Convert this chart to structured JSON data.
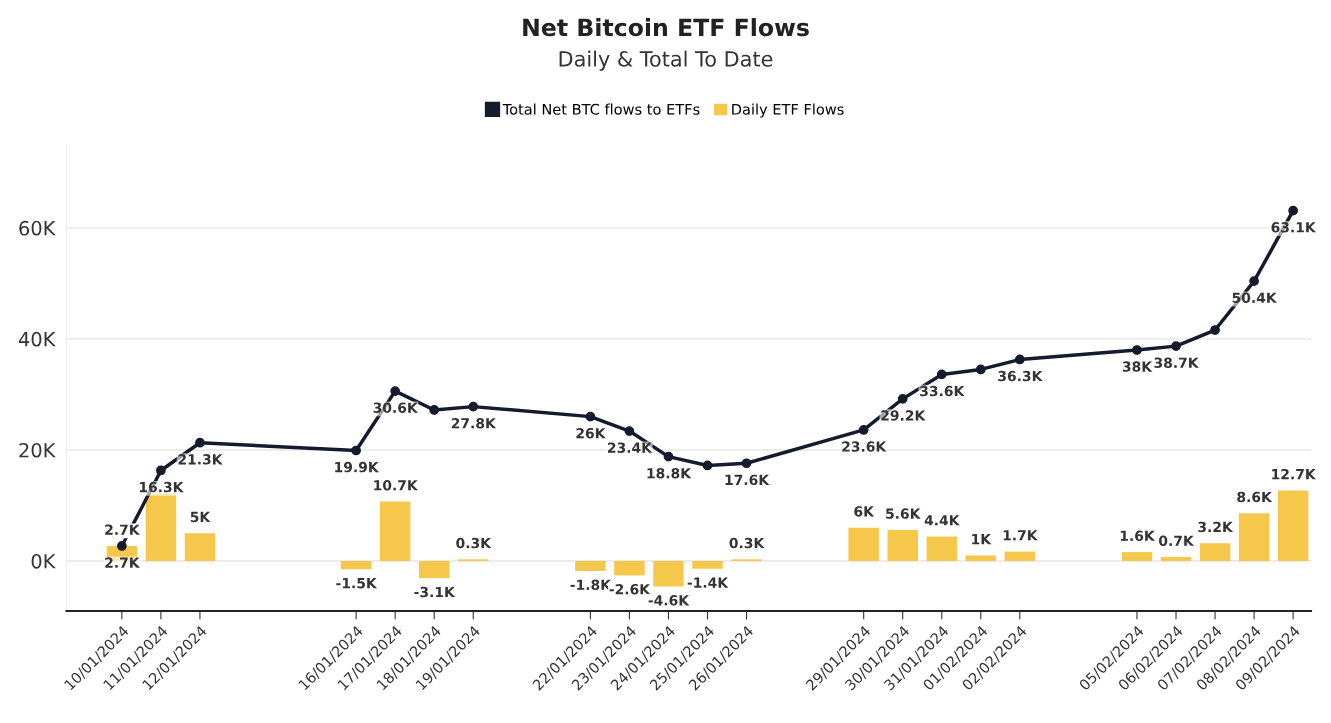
{
  "chart_data": {
    "type": "bar",
    "title": "Net Bitcoin ETF Flows",
    "subtitle": "Daily & Total To Date",
    "x": [
      "2024-01-10",
      "2024-01-11",
      "2024-01-12",
      "2024-01-16",
      "2024-01-17",
      "2024-01-18",
      "2024-01-19",
      "2024-01-22",
      "2024-01-23",
      "2024-01-24",
      "2024-01-25",
      "2024-01-26",
      "2024-01-29",
      "2024-01-30",
      "2024-01-31",
      "2024-02-01",
      "2024-02-02",
      "2024-02-05",
      "2024-02-06",
      "2024-02-07",
      "2024-02-08",
      "2024-02-09"
    ],
    "series": [
      {
        "name": "Total Net BTC flows to ETFs",
        "type": "line",
        "color": "#141b2e",
        "marker": "circle",
        "line_style": "solid",
        "values": [
          2700,
          16300,
          21300,
          19900,
          30600,
          27200,
          27800,
          26000,
          23400,
          18800,
          17200,
          17600,
          23600,
          29200,
          33600,
          34500,
          36300,
          38000,
          38700,
          41600,
          50400,
          63100
        ],
        "value_labels": [
          "2.7K",
          "16.3K",
          "21.3K",
          "19.9K",
          "30.6K",
          null,
          "27.8K",
          "26K",
          "23.4K",
          "18.8K",
          null,
          "17.6K",
          "23.6K",
          "29.2K",
          "33.6K",
          null,
          "36.3K",
          "38K",
          "38.7K",
          null,
          "50.4K",
          "63.1K"
        ]
      },
      {
        "name": "Daily ETF Flows",
        "color": "#f5c84c",
        "values": [
          2700,
          12100,
          5000,
          -1500,
          10700,
          -3100,
          300,
          -1800,
          -2600,
          -4600,
          -1400,
          300,
          6000,
          5600,
          4400,
          1000,
          1700,
          1600,
          700,
          3200,
          8600,
          12700
        ],
        "value_labels": [
          "2.7K",
          null,
          "5K",
          "-1.5K",
          "10.7K",
          "-3.1K",
          "0.3K",
          "-1.8K",
          "-2.6K",
          "-4.6K",
          "-1.4K",
          "0.3K",
          "6K",
          "5.6K",
          "4.4K",
          "1K",
          "1.7K",
          "1.6K",
          "0.7K",
          "3.2K",
          "8.6K",
          "12.7K"
        ]
      }
    ],
    "xlim": [
      "2024-01-08T14:00",
      "2024-02-09T11:00"
    ],
    "xticks": [
      {
        "value": "2024-01-10",
        "label": "10/01/2024"
      },
      {
        "value": "2024-01-11",
        "label": "11/01/2024"
      },
      {
        "value": "2024-01-12",
        "label": "12/01/2024"
      },
      {
        "value": "2024-01-16",
        "label": "16/01/2024"
      },
      {
        "value": "2024-01-17",
        "label": "17/01/2024"
      },
      {
        "value": "2024-01-18",
        "label": "18/01/2024"
      },
      {
        "value": "2024-01-19",
        "label": "19/01/2024"
      },
      {
        "value": "2024-01-22",
        "label": "22/01/2024"
      },
      {
        "value": "2024-01-23",
        "label": "23/01/2024"
      },
      {
        "value": "2024-01-24",
        "label": "24/01/2024"
      },
      {
        "value": "2024-01-25",
        "label": "25/01/2024"
      },
      {
        "value": "2024-01-26",
        "label": "26/01/2024"
      },
      {
        "value": "2024-01-29",
        "label": "29/01/2024"
      },
      {
        "value": "2024-01-30",
        "label": "30/01/2024"
      },
      {
        "value": "2024-01-31",
        "label": "31/01/2024"
      },
      {
        "value": "2024-02-01",
        "label": "01/02/2024"
      },
      {
        "value": "2024-02-02",
        "label": "02/02/2024"
      },
      {
        "value": "2024-02-05",
        "label": "05/02/2024"
      },
      {
        "value": "2024-02-06",
        "label": "06/02/2024"
      },
      {
        "value": "2024-02-07",
        "label": "07/02/2024"
      },
      {
        "value": "2024-02-08",
        "label": "08/02/2024"
      },
      {
        "value": "2024-02-09",
        "label": "09/02/2024"
      }
    ],
    "ylim": [
      -9000,
      75000
    ],
    "yticks": [
      {
        "value": 0,
        "label": "0K"
      },
      {
        "value": 20000,
        "label": "20K"
      },
      {
        "value": 40000,
        "label": "40K"
      },
      {
        "value": 60000,
        "label": "60K"
      }
    ],
    "grid": "y",
    "legend": "top"
  }
}
